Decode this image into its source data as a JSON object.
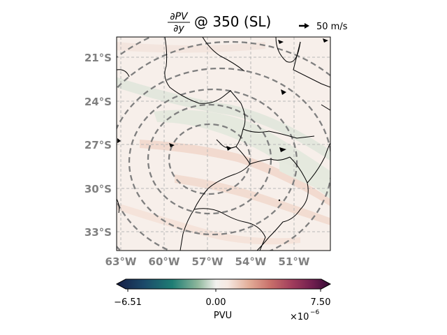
{
  "map": {
    "title_partial": "∂PV",
    "title_denom": "∂y",
    "title_rest": "@ 350 (SL)",
    "lat_labels": [
      "21°S",
      "24°S",
      "27°S",
      "30°S",
      "33°S"
    ],
    "lon_labels": [
      "63°W",
      "60°W",
      "57°W",
      "54°W",
      "51°W"
    ],
    "label_color": "#808080",
    "quiver_key": "50 m/s",
    "colorbar": {
      "ticks": [
        "−6.51",
        "0.00",
        "7.50"
      ],
      "label": "PVU",
      "scale_base": "×10",
      "scale_exp": "−6",
      "min": -6.51,
      "max": 7.5,
      "colormap": "curl"
    },
    "contour_style": "dashed gray",
    "gridlines": true
  }
}
